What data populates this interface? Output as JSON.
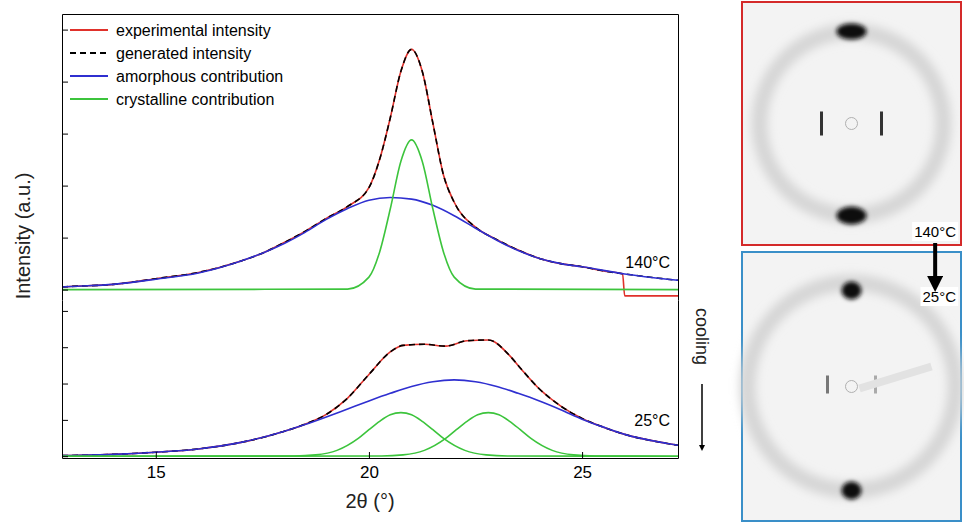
{
  "chart_data": [
    {
      "type": "line",
      "title": "140°C",
      "ylabel": "Intensity (a.u.)",
      "xlim": [
        12.8,
        27.25
      ],
      "ylim": [
        -0.2,
        5.3
      ],
      "yticks": [
        0,
        1,
        2,
        3,
        4,
        5
      ],
      "tick_labels": false,
      "legend": "upper left",
      "series": [
        {
          "name": "experimental intensity",
          "color": "#e0312b",
          "line_style": "solid",
          "x": [
            12.8,
            13,
            14,
            15,
            16,
            17,
            17.5,
            18,
            18.5,
            19,
            19.5,
            20,
            20.25,
            20.5,
            20.75,
            21,
            21.25,
            21.5,
            21.75,
            22,
            22.5,
            23,
            23.5,
            24,
            24.5,
            25,
            25.5,
            25.95,
            26.0,
            27.25
          ],
          "values": [
            0.05,
            0.06,
            0.1,
            0.21,
            0.33,
            0.55,
            0.7,
            0.9,
            1.12,
            1.37,
            1.6,
            1.96,
            2.5,
            3.3,
            4.2,
            4.62,
            4.2,
            3.2,
            2.2,
            1.68,
            1.2,
            0.96,
            0.76,
            0.6,
            0.5,
            0.44,
            0.36,
            0.3,
            -0.12,
            -0.12
          ]
        },
        {
          "name": "generated intensity",
          "color": "#000000",
          "line_style": "dashed",
          "x": [
            12.8,
            13,
            14,
            15,
            16,
            17,
            17.5,
            18,
            18.5,
            19,
            19.5,
            20,
            20.25,
            20.5,
            20.75,
            21,
            21.25,
            21.5,
            21.75,
            22,
            22.5,
            23,
            23.5,
            24,
            24.5,
            25,
            25.5,
            26,
            26.5,
            27,
            27.25
          ],
          "values": [
            0.05,
            0.06,
            0.1,
            0.21,
            0.33,
            0.55,
            0.7,
            0.9,
            1.12,
            1.37,
            1.6,
            1.96,
            2.5,
            3.3,
            4.2,
            4.62,
            4.2,
            3.2,
            2.2,
            1.68,
            1.2,
            0.96,
            0.76,
            0.6,
            0.5,
            0.44,
            0.36,
            0.3,
            0.25,
            0.2,
            0.18
          ]
        },
        {
          "name": "amorphous contribution",
          "color": "#2f2fd0",
          "line_style": "solid",
          "x": [
            12.8,
            13,
            14,
            15,
            16,
            17,
            17.5,
            18,
            18.5,
            19,
            19.5,
            20,
            20.5,
            21,
            21.5,
            22,
            22.5,
            23,
            23.5,
            24,
            24.5,
            25,
            26,
            27,
            27.25
          ],
          "values": [
            0.05,
            0.06,
            0.1,
            0.2,
            0.32,
            0.55,
            0.7,
            0.88,
            1.1,
            1.35,
            1.56,
            1.72,
            1.77,
            1.74,
            1.62,
            1.42,
            1.18,
            0.95,
            0.75,
            0.6,
            0.5,
            0.44,
            0.3,
            0.2,
            0.18
          ]
        },
        {
          "name": "crystalline contribution",
          "color": "#3cc43c",
          "line_style": "solid",
          "x": [
            12.8,
            19.5,
            20,
            20.25,
            20.5,
            20.75,
            21,
            21.25,
            21.5,
            21.75,
            22,
            22.5,
            27.25
          ],
          "values": [
            0,
            0.01,
            0.24,
            0.72,
            1.55,
            2.47,
            2.88,
            2.47,
            1.55,
            0.72,
            0.24,
            0.01,
            0
          ]
        }
      ]
    },
    {
      "type": "line",
      "title": "25°C",
      "xlabel": "2θ (°)",
      "annotation": "cooling",
      "xlim": [
        12.8,
        27.25
      ],
      "xticks": [
        15,
        20,
        25
      ],
      "ylim": [
        -0.05,
        4.3
      ],
      "yticks": [
        0,
        1,
        2,
        3,
        4
      ],
      "tick_labels": "x",
      "series": [
        {
          "color": "#e0312b",
          "line_style": "solid",
          "x": [
            12.8,
            13,
            14,
            15,
            16,
            17,
            18,
            18.5,
            19,
            19.5,
            20,
            20.5,
            20.8,
            21.3,
            21.8,
            22.3,
            22.8,
            23.3,
            23.55,
            24,
            24.5,
            25,
            25.5,
            26,
            27,
            27.25
          ],
          "values": [
            0.02,
            0.02,
            0.05,
            0.11,
            0.2,
            0.38,
            0.68,
            0.88,
            1.15,
            1.6,
            2.25,
            2.87,
            3.05,
            3.08,
            3.03,
            3.18,
            3.2,
            2.77,
            2.43,
            1.85,
            1.38,
            1.04,
            0.8,
            0.6,
            0.35,
            0.3
          ]
        },
        {
          "color": "#000000",
          "line_style": "dashed",
          "x": [
            12.8,
            13,
            14,
            15,
            16,
            17,
            18,
            18.5,
            19,
            19.5,
            20,
            20.5,
            20.8,
            21.3,
            21.8,
            22.3,
            22.8,
            23.3,
            23.55,
            24,
            24.5,
            25,
            25.5,
            26,
            27,
            27.25
          ],
          "values": [
            0.02,
            0.02,
            0.05,
            0.11,
            0.2,
            0.38,
            0.68,
            0.88,
            1.15,
            1.6,
            2.25,
            2.87,
            3.05,
            3.08,
            3.03,
            3.18,
            3.2,
            2.77,
            2.43,
            1.85,
            1.38,
            1.04,
            0.8,
            0.6,
            0.35,
            0.3
          ]
        },
        {
          "color": "#2f2fd0",
          "line_style": "solid",
          "x": [
            12.8,
            13,
            14,
            15,
            16,
            17,
            18,
            18.5,
            19,
            19.5,
            20,
            20.5,
            21,
            21.5,
            22,
            22.5,
            23,
            23.5,
            24,
            24.5,
            25,
            25.5,
            26,
            27,
            27.25
          ],
          "values": [
            0.02,
            0.02,
            0.05,
            0.11,
            0.2,
            0.38,
            0.68,
            0.87,
            1.08,
            1.3,
            1.52,
            1.73,
            1.92,
            2.05,
            2.1,
            2.05,
            1.92,
            1.73,
            1.52,
            1.28,
            1.02,
            0.8,
            0.6,
            0.35,
            0.3
          ]
        },
        {
          "color": "#3cc43c",
          "line_style": "solid",
          "x": [
            12.8,
            18.25,
            18.75,
            19.25,
            19.75,
            20,
            20.25,
            20.5,
            20.75,
            21,
            21.25,
            21.5,
            21.75,
            22.25,
            22.75,
            23.25,
            27.25
          ],
          "values": [
            0,
            0.005,
            0.035,
            0.16,
            0.49,
            0.73,
            0.96,
            1.14,
            1.2,
            1.14,
            0.96,
            0.73,
            0.49,
            0.16,
            0.035,
            0.005,
            0
          ]
        },
        {
          "color": "#3cc43c",
          "line_style": "solid",
          "x": [
            12.8,
            20.3,
            20.8,
            21.3,
            21.8,
            22.05,
            22.3,
            22.55,
            22.8,
            23.05,
            23.3,
            23.55,
            23.8,
            24.3,
            24.8,
            25.3,
            27.25
          ],
          "values": [
            0,
            0.005,
            0.035,
            0.16,
            0.49,
            0.73,
            0.96,
            1.14,
            1.2,
            1.14,
            0.96,
            0.73,
            0.49,
            0.16,
            0.035,
            0.005,
            0
          ]
        }
      ]
    }
  ],
  "images": {
    "before": "140°C",
    "after": "25°C"
  }
}
